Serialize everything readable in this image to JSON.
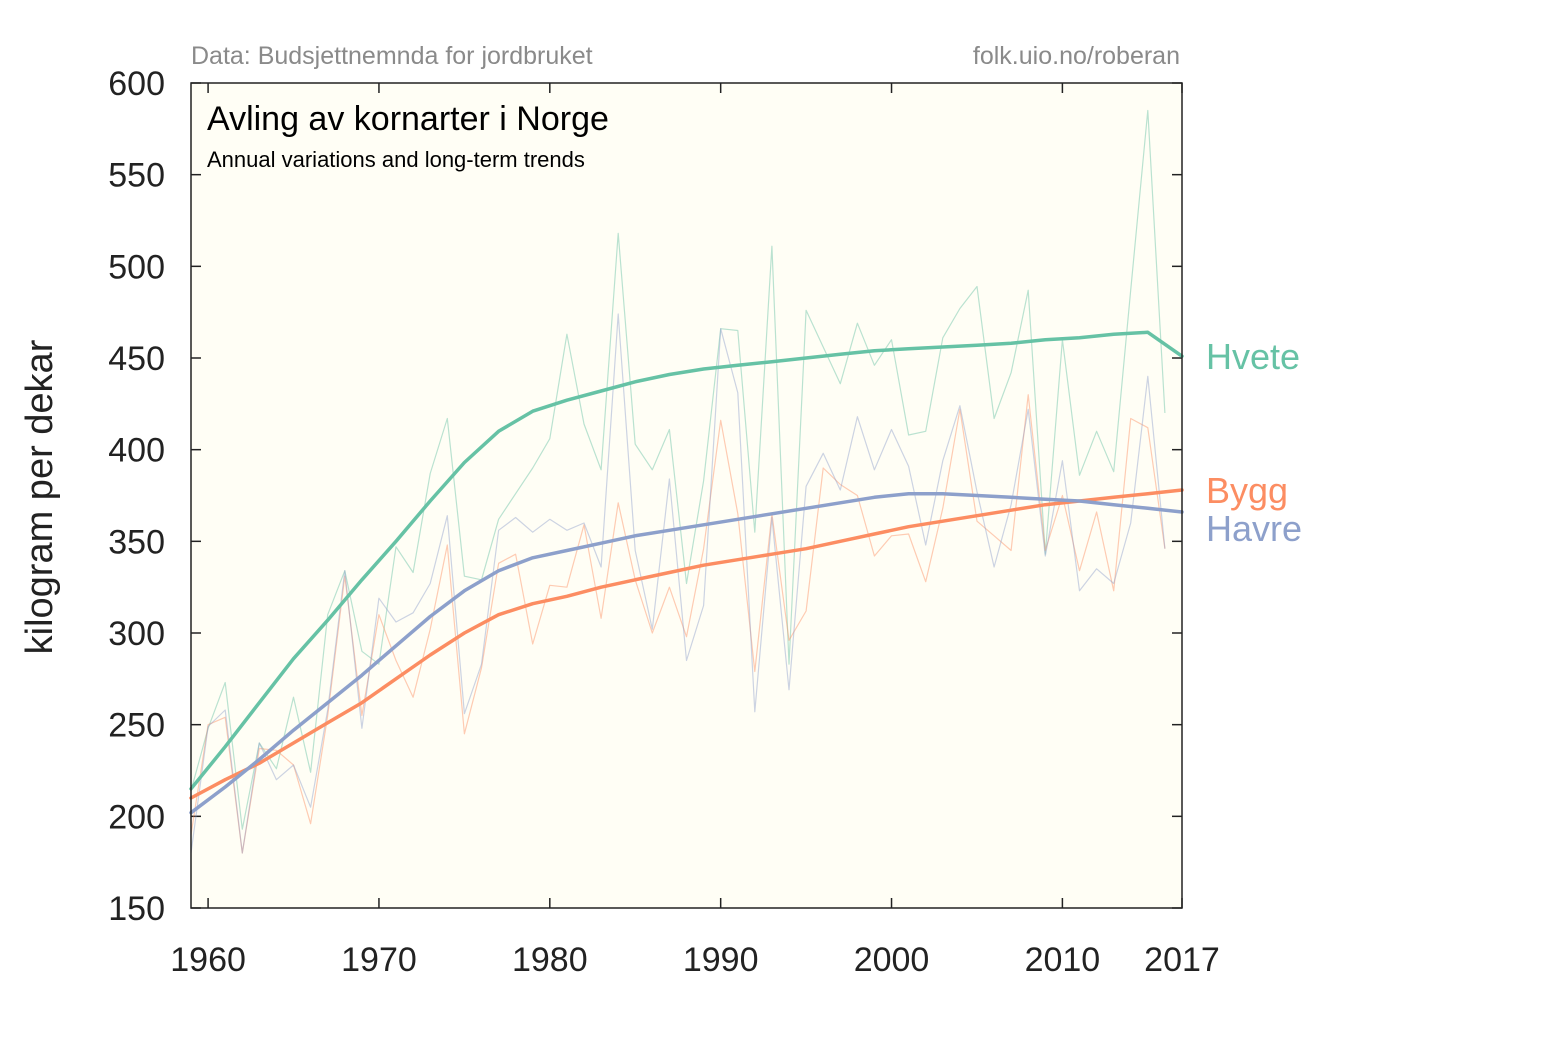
{
  "source_left": "Data: Budsjettnemnda for jordbruket",
  "source_right": "folk.uio.no/roberan",
  "chart_data": {
    "type": "line",
    "title": "Avling av kornarter i Norge",
    "subtitle": "Annual variations and long-term trends",
    "ylabel": "kilogram per dekar",
    "xlabel": "",
    "xlim": [
      1959,
      2017
    ],
    "ylim": [
      150,
      600
    ],
    "x_ticks": [
      1960,
      1970,
      1980,
      1990,
      2000,
      2010,
      2017
    ],
    "y_ticks": [
      150,
      200,
      250,
      300,
      350,
      400,
      450,
      500,
      550,
      600
    ],
    "background": "#fffef5",
    "grid": false,
    "legend": "direct labels at right end of lines",
    "series": [
      {
        "name": "Hvete",
        "color": "#66c2a5",
        "annual": [
          [
            1959,
            214
          ],
          [
            1960,
            248
          ],
          [
            1961,
            273
          ],
          [
            1962,
            193
          ],
          [
            1963,
            240
          ],
          [
            1964,
            226
          ],
          [
            1965,
            265
          ],
          [
            1966,
            224
          ],
          [
            1967,
            310
          ],
          [
            1968,
            334
          ],
          [
            1969,
            290
          ],
          [
            1970,
            283
          ],
          [
            1971,
            347
          ],
          [
            1972,
            333
          ],
          [
            1973,
            387
          ],
          [
            1974,
            417
          ],
          [
            1975,
            331
          ],
          [
            1976,
            329
          ],
          [
            1977,
            362
          ],
          [
            1978,
            376
          ],
          [
            1979,
            390
          ],
          [
            1980,
            406
          ],
          [
            1981,
            463
          ],
          [
            1982,
            414
          ],
          [
            1983,
            389
          ],
          [
            1984,
            518
          ],
          [
            1985,
            403
          ],
          [
            1986,
            389
          ],
          [
            1987,
            411
          ],
          [
            1988,
            327
          ],
          [
            1989,
            383
          ],
          [
            1990,
            466
          ],
          [
            1991,
            465
          ],
          [
            1992,
            355
          ],
          [
            1993,
            511
          ],
          [
            1994,
            283
          ],
          [
            1995,
            476
          ],
          [
            1996,
            456
          ],
          [
            1997,
            436
          ],
          [
            1998,
            469
          ],
          [
            1999,
            446
          ],
          [
            2000,
            460
          ],
          [
            2001,
            408
          ],
          [
            2002,
            410
          ],
          [
            2003,
            461
          ],
          [
            2004,
            477
          ],
          [
            2005,
            489
          ],
          [
            2006,
            417
          ],
          [
            2007,
            442
          ],
          [
            2008,
            487
          ],
          [
            2009,
            343
          ],
          [
            2010,
            460
          ],
          [
            2011,
            386
          ],
          [
            2012,
            410
          ],
          [
            2013,
            388
          ],
          [
            2014,
            487
          ],
          [
            2015,
            585
          ],
          [
            2016,
            420
          ]
        ],
        "trend": [
          [
            1959,
            215
          ],
          [
            1961,
            238
          ],
          [
            1963,
            262
          ],
          [
            1965,
            286
          ],
          [
            1967,
            307
          ],
          [
            1969,
            329
          ],
          [
            1971,
            350
          ],
          [
            1973,
            372
          ],
          [
            1975,
            393
          ],
          [
            1977,
            410
          ],
          [
            1979,
            421
          ],
          [
            1981,
            427
          ],
          [
            1983,
            432
          ],
          [
            1985,
            437
          ],
          [
            1987,
            441
          ],
          [
            1989,
            444
          ],
          [
            1991,
            446
          ],
          [
            1993,
            448
          ],
          [
            1995,
            450
          ],
          [
            1997,
            452
          ],
          [
            1999,
            454
          ],
          [
            2001,
            455
          ],
          [
            2003,
            456
          ],
          [
            2005,
            457
          ],
          [
            2007,
            458
          ],
          [
            2009,
            460
          ],
          [
            2011,
            461
          ],
          [
            2013,
            463
          ],
          [
            2015,
            464
          ],
          [
            2017,
            451
          ]
        ]
      },
      {
        "name": "Bygg",
        "color": "#fc8d62",
        "annual": [
          [
            1959,
            190
          ],
          [
            1960,
            250
          ],
          [
            1961,
            254
          ],
          [
            1962,
            180
          ],
          [
            1963,
            237
          ],
          [
            1964,
            236
          ],
          [
            1965,
            228
          ],
          [
            1966,
            196
          ],
          [
            1967,
            255
          ],
          [
            1968,
            331
          ],
          [
            1969,
            255
          ],
          [
            1970,
            310
          ],
          [
            1971,
            285
          ],
          [
            1972,
            265
          ],
          [
            1973,
            302
          ],
          [
            1974,
            348
          ],
          [
            1975,
            245
          ],
          [
            1976,
            281
          ],
          [
            1977,
            338
          ],
          [
            1978,
            343
          ],
          [
            1979,
            294
          ],
          [
            1980,
            326
          ],
          [
            1981,
            325
          ],
          [
            1982,
            359
          ],
          [
            1983,
            308
          ],
          [
            1984,
            371
          ],
          [
            1985,
            329
          ],
          [
            1986,
            300
          ],
          [
            1987,
            325
          ],
          [
            1988,
            298
          ],
          [
            1989,
            346
          ],
          [
            1990,
            416
          ],
          [
            1991,
            365
          ],
          [
            1992,
            279
          ],
          [
            1993,
            365
          ],
          [
            1994,
            296
          ],
          [
            1995,
            312
          ],
          [
            1996,
            390
          ],
          [
            1997,
            381
          ],
          [
            1998,
            375
          ],
          [
            1999,
            342
          ],
          [
            2000,
            353
          ],
          [
            2001,
            354
          ],
          [
            2002,
            328
          ],
          [
            2003,
            368
          ],
          [
            2004,
            422
          ],
          [
            2005,
            361
          ],
          [
            2006,
            353
          ],
          [
            2007,
            345
          ],
          [
            2008,
            430
          ],
          [
            2009,
            345
          ],
          [
            2010,
            375
          ],
          [
            2011,
            334
          ],
          [
            2012,
            366
          ],
          [
            2013,
            323
          ],
          [
            2014,
            417
          ],
          [
            2015,
            412
          ],
          [
            2016,
            346
          ]
        ],
        "trend": [
          [
            1959,
            210
          ],
          [
            1961,
            220
          ],
          [
            1963,
            229
          ],
          [
            1965,
            240
          ],
          [
            1967,
            251
          ],
          [
            1969,
            262
          ],
          [
            1971,
            275
          ],
          [
            1973,
            288
          ],
          [
            1975,
            300
          ],
          [
            1977,
            310
          ],
          [
            1979,
            316
          ],
          [
            1981,
            320
          ],
          [
            1983,
            325
          ],
          [
            1985,
            329
          ],
          [
            1987,
            333
          ],
          [
            1989,
            337
          ],
          [
            1991,
            340
          ],
          [
            1993,
            343
          ],
          [
            1995,
            346
          ],
          [
            1997,
            350
          ],
          [
            1999,
            354
          ],
          [
            2001,
            358
          ],
          [
            2003,
            361
          ],
          [
            2005,
            364
          ],
          [
            2007,
            367
          ],
          [
            2009,
            370
          ],
          [
            2011,
            372
          ],
          [
            2013,
            374
          ],
          [
            2015,
            376
          ],
          [
            2017,
            378
          ]
        ]
      },
      {
        "name": "Havre",
        "color": "#8da0cb",
        "annual": [
          [
            1959,
            180
          ],
          [
            1960,
            249
          ],
          [
            1961,
            258
          ],
          [
            1962,
            180
          ],
          [
            1963,
            240
          ],
          [
            1964,
            220
          ],
          [
            1965,
            228
          ],
          [
            1966,
            205
          ],
          [
            1967,
            258
          ],
          [
            1968,
            334
          ],
          [
            1969,
            248
          ],
          [
            1970,
            319
          ],
          [
            1971,
            306
          ],
          [
            1972,
            311
          ],
          [
            1973,
            327
          ],
          [
            1974,
            364
          ],
          [
            1975,
            256
          ],
          [
            1976,
            283
          ],
          [
            1977,
            356
          ],
          [
            1978,
            363
          ],
          [
            1979,
            355
          ],
          [
            1980,
            362
          ],
          [
            1981,
            356
          ],
          [
            1982,
            360
          ],
          [
            1983,
            336
          ],
          [
            1984,
            474
          ],
          [
            1985,
            345
          ],
          [
            1986,
            302
          ],
          [
            1987,
            384
          ],
          [
            1988,
            285
          ],
          [
            1989,
            315
          ],
          [
            1990,
            466
          ],
          [
            1991,
            431
          ],
          [
            1992,
            257
          ],
          [
            1993,
            363
          ],
          [
            1994,
            269
          ],
          [
            1995,
            380
          ],
          [
            1996,
            398
          ],
          [
            1997,
            378
          ],
          [
            1998,
            418
          ],
          [
            1999,
            389
          ],
          [
            2000,
            411
          ],
          [
            2001,
            391
          ],
          [
            2002,
            348
          ],
          [
            2003,
            394
          ],
          [
            2004,
            424
          ],
          [
            2005,
            377
          ],
          [
            2006,
            336
          ],
          [
            2007,
            370
          ],
          [
            2008,
            422
          ],
          [
            2009,
            342
          ],
          [
            2010,
            394
          ],
          [
            2011,
            323
          ],
          [
            2012,
            335
          ],
          [
            2013,
            327
          ],
          [
            2014,
            360
          ],
          [
            2015,
            440
          ],
          [
            2016,
            346
          ]
        ],
        "trend": [
          [
            1959,
            202
          ],
          [
            1961,
            216
          ],
          [
            1963,
            231
          ],
          [
            1965,
            247
          ],
          [
            1967,
            262
          ],
          [
            1969,
            277
          ],
          [
            1971,
            293
          ],
          [
            1973,
            309
          ],
          [
            1975,
            323
          ],
          [
            1977,
            334
          ],
          [
            1979,
            341
          ],
          [
            1981,
            345
          ],
          [
            1983,
            349
          ],
          [
            1985,
            353
          ],
          [
            1987,
            356
          ],
          [
            1989,
            359
          ],
          [
            1991,
            362
          ],
          [
            1993,
            365
          ],
          [
            1995,
            368
          ],
          [
            1997,
            371
          ],
          [
            1999,
            374
          ],
          [
            2001,
            376
          ],
          [
            2003,
            376
          ],
          [
            2005,
            375
          ],
          [
            2007,
            374
          ],
          [
            2009,
            373
          ],
          [
            2011,
            372
          ],
          [
            2013,
            370
          ],
          [
            2015,
            368
          ],
          [
            2017,
            366
          ]
        ]
      }
    ]
  }
}
